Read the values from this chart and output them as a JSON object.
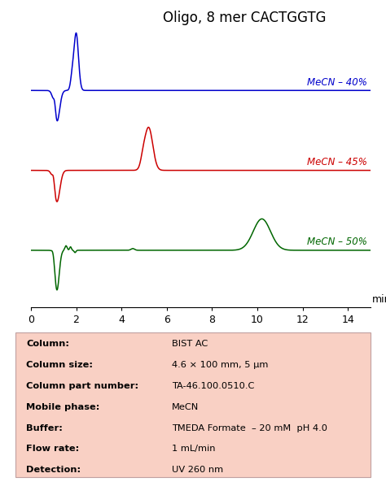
{
  "title": "Oligo, 8 mer CACTGGTG",
  "title_fontsize": 12,
  "xlabel": "min",
  "xlim": [
    0,
    15
  ],
  "xticks": [
    0,
    2,
    4,
    6,
    8,
    10,
    12,
    14
  ],
  "colors": {
    "blue": "#0000cc",
    "red": "#cc0000",
    "green": "#006600"
  },
  "labels": [
    "MeCN – 40%",
    "MeCN – 45%",
    "MeCN – 50%"
  ],
  "table_bg": "#f9d0c4",
  "table_labels": [
    "Column:",
    "Column size:",
    "Column part number:",
    "Mobile phase:",
    "Buffer:",
    "Flow rate:",
    "Detection:"
  ],
  "table_values": [
    "BIST AC",
    "4.6 × 100 mm, 5 μm",
    "TA-46.100.0510.C",
    "MeCN",
    "TMEDA Formate  – 20 mM  pH 4.0",
    "1 mL/min",
    "UV 260 nm"
  ]
}
